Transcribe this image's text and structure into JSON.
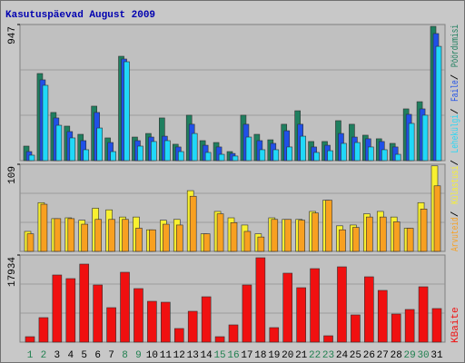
{
  "chart_data": [
    {
      "type": "bar",
      "title": "Kasutuspäevad August 2009",
      "series": [
        {
          "name": "Pöördumisi",
          "color": "#1f7f5f",
          "values": [
            101,
            606,
            335,
            240,
            183,
            379,
            158,
            726,
            164,
            189,
            297,
            114,
            316,
            139,
            126,
            63,
            316,
            183,
            145,
            253,
            347,
            133,
            133,
            278,
            253,
            177,
            152,
            120,
            360,
            410,
            934
          ]
        },
        {
          "name": "Faile",
          "color": "#2050e8",
          "values": [
            63,
            562,
            297,
            202,
            139,
            335,
            126,
            707,
            139,
            164,
            170,
            95,
            253,
            107,
            95,
            50,
            253,
            139,
            120,
            208,
            253,
            95,
            107,
            189,
            164,
            152,
            133,
            95,
            322,
            360,
            884
          ]
        },
        {
          "name": "Lehekülgi",
          "color": "#20d8f8",
          "values": [
            38,
            524,
            246,
            158,
            76,
            227,
            63,
            688,
            101,
            133,
            139,
            63,
            189,
            57,
            44,
            32,
            164,
            76,
            76,
            95,
            170,
            57,
            69,
            120,
            126,
            95,
            76,
            44,
            259,
            316,
            795
          ]
        }
      ],
      "ylim": [
        0,
        947
      ],
      "yticks": [
        947
      ]
    },
    {
      "type": "bar",
      "series": [
        {
          "name": "Arvuteid",
          "color": "#f8a020",
          "values": [
            22,
            59,
            41,
            41,
            34,
            40,
            40,
            40,
            29,
            27,
            34,
            33,
            69,
            22,
            47,
            36,
            25,
            18,
            40,
            40,
            39,
            48,
            64,
            27,
            30,
            43,
            43,
            37,
            29,
            53,
            82
          ]
        },
        {
          "name": "Külastusi",
          "color": "#f8f030",
          "values": [
            25,
            61,
            41,
            42,
            39,
            54,
            52,
            43,
            43,
            27,
            39,
            40,
            76,
            22,
            50,
            42,
            33,
            22,
            42,
            40,
            40,
            50,
            64,
            32,
            33,
            47,
            50,
            43,
            29,
            61,
            107
          ]
        }
      ],
      "ylim": [
        0,
        109
      ],
      "yticks": [
        109
      ]
    },
    {
      "type": "bar",
      "series": [
        {
          "name": "KBaite",
          "color": "#f01010",
          "values": [
            1121,
            5044,
            13823,
            13076,
            16065,
            11768,
            7098,
            14384,
            11021,
            8406,
            8219,
            2802,
            6351,
            9340,
            1121,
            3549,
            11768,
            17372,
            2989,
            14197,
            11208,
            15131,
            1308,
            15504,
            5604,
            13450,
            10648,
            5791,
            6725,
            11395,
            6912
          ]
        }
      ],
      "ylim": [
        0,
        17934
      ],
      "yticks": [
        17934
      ],
      "categories": [
        "1",
        "2",
        "3",
        "4",
        "5",
        "6",
        "7",
        "8",
        "9",
        "10",
        "11",
        "12",
        "13",
        "14",
        "15",
        "16",
        "17",
        "18",
        "19",
        "20",
        "21",
        "22",
        "23",
        "24",
        "25",
        "26",
        "27",
        "28",
        "29",
        "30",
        "31"
      ],
      "category_colors": [
        "#208050",
        "#208050",
        "#000000",
        "#000000",
        "#000000",
        "#000000",
        "#000000",
        "#208050",
        "#208050",
        "#000000",
        "#000000",
        "#000000",
        "#000000",
        "#000000",
        "#208050",
        "#208050",
        "#000000",
        "#000000",
        "#000000",
        "#000000",
        "#000000",
        "#208050",
        "#208050",
        "#000000",
        "#000000",
        "#000000",
        "#000000",
        "#000000",
        "#208050",
        "#208050",
        "#000000"
      ]
    }
  ]
}
